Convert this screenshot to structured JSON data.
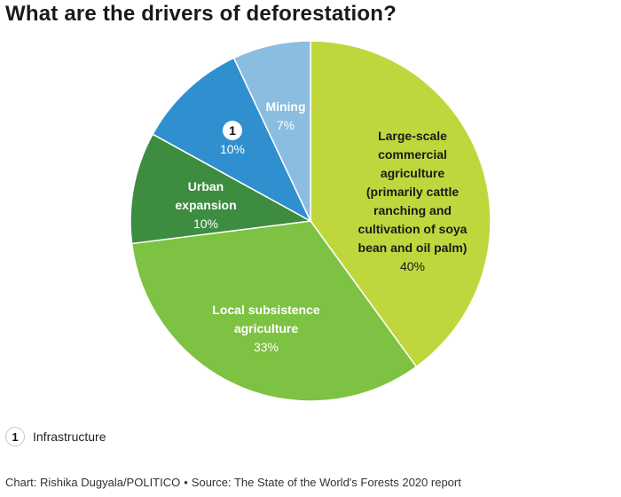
{
  "title": "What are the drivers of deforestation?",
  "chart_data": {
    "type": "pie",
    "title": "What are the drivers of deforestation?",
    "slices": [
      {
        "label_lines": [
          "Large-scale",
          "commercial",
          "agriculture",
          "(primarily cattle",
          "ranching and",
          "cultivation of soya",
          "bean and oil palm)"
        ],
        "value": 40,
        "value_label": "40%",
        "color": "#bfd73d",
        "text_color": "#1a1a1a",
        "value_color": "#1a1a1a"
      },
      {
        "label_lines": [
          "Local subsistence",
          "agriculture"
        ],
        "value": 33,
        "value_label": "33%",
        "color": "#7dc242",
        "text_color": "#ffffff",
        "value_color": "#ffffff"
      },
      {
        "label_lines": [
          "Urban",
          "expansion"
        ],
        "value": 10,
        "value_label": "10%",
        "color": "#3d8c40",
        "text_color": "#ffffff",
        "value_color": "#ffffff"
      },
      {
        "label_lines": [],
        "marker": "1",
        "value": 10,
        "value_label": "10%",
        "color": "#2f8fcf",
        "text_color": "#ffffff",
        "value_color": "#ffffff"
      },
      {
        "label_lines": [
          "Mining"
        ],
        "value": 7,
        "value_label": "7%",
        "color": "#8bbde0",
        "text_color": "#ffffff",
        "value_color": "#ffffff"
      }
    ],
    "start_angle_deg": 0,
    "direction": "clockwise"
  },
  "legend": {
    "marker": "1",
    "text": "Infrastructure"
  },
  "footer": {
    "credit": "Chart: Rishika Dugyala/POLITICO",
    "separator": "•",
    "source": "Source: The State of the World's Forests 2020 report"
  }
}
